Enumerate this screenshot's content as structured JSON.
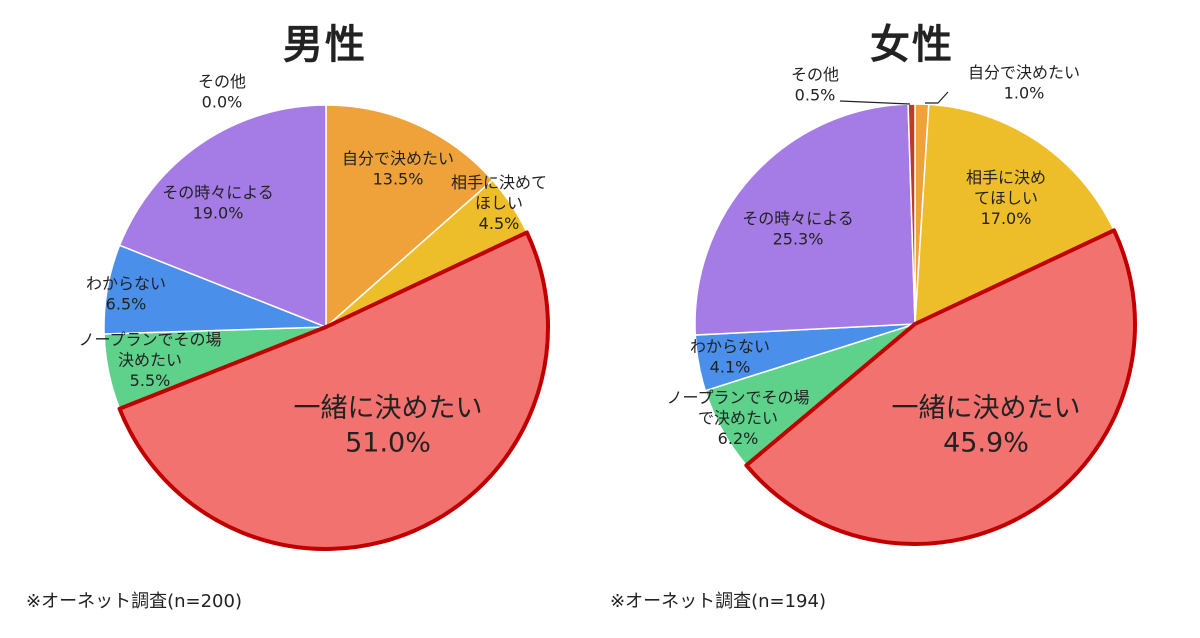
{
  "chart_data": [
    {
      "type": "pie",
      "title": "男性",
      "footnote": "※オーネット調査(n=200)",
      "slices": [
        {
          "label": "自分で決めたい",
          "value": 13.5,
          "value_label": "13.5%",
          "color": "#F0A23A"
        },
        {
          "label": "相手に決めて\nほしい",
          "value": 4.5,
          "value_label": "4.5%",
          "color": "#EEBE2A"
        },
        {
          "label": "一緒に決めたい",
          "value": 51.0,
          "value_label": "51.0%",
          "color": "#F27270",
          "highlight": true
        },
        {
          "label": "ノープランでその場\n決めたい",
          "value": 5.5,
          "value_label": "5.5%",
          "color": "#5ED18A"
        },
        {
          "label": "わからない",
          "value": 6.5,
          "value_label": "6.5%",
          "color": "#4A8FEA"
        },
        {
          "label": "その時々による",
          "value": 19.0,
          "value_label": "19.0%",
          "color": "#A57CE6"
        },
        {
          "label": "その他",
          "value": 0.0,
          "value_label": "0.0%",
          "color": "#C0392B"
        }
      ]
    },
    {
      "type": "pie",
      "title": "女性",
      "footnote": "※オーネット調査(n=194)",
      "slices": [
        {
          "label": "自分で決めたい",
          "value": 1.0,
          "value_label": "1.0%",
          "color": "#F0A23A"
        },
        {
          "label": "相手に決め\nてほしい",
          "value": 17.0,
          "value_label": "17.0%",
          "color": "#EEBE2A"
        },
        {
          "label": "一緒に決めたい",
          "value": 45.9,
          "value_label": "45.9%",
          "color": "#F27270",
          "highlight": true
        },
        {
          "label": "ノープランでその場\nで決めたい",
          "value": 6.2,
          "value_label": "6.2%",
          "color": "#5ED18A"
        },
        {
          "label": "わからない",
          "value": 4.1,
          "value_label": "4.1%",
          "color": "#4A8FEA"
        },
        {
          "label": "その時々による",
          "value": 25.3,
          "value_label": "25.3%",
          "color": "#A57CE6"
        },
        {
          "label": "その他",
          "value": 0.5,
          "value_label": "0.5%",
          "color": "#C0392B"
        }
      ]
    }
  ]
}
